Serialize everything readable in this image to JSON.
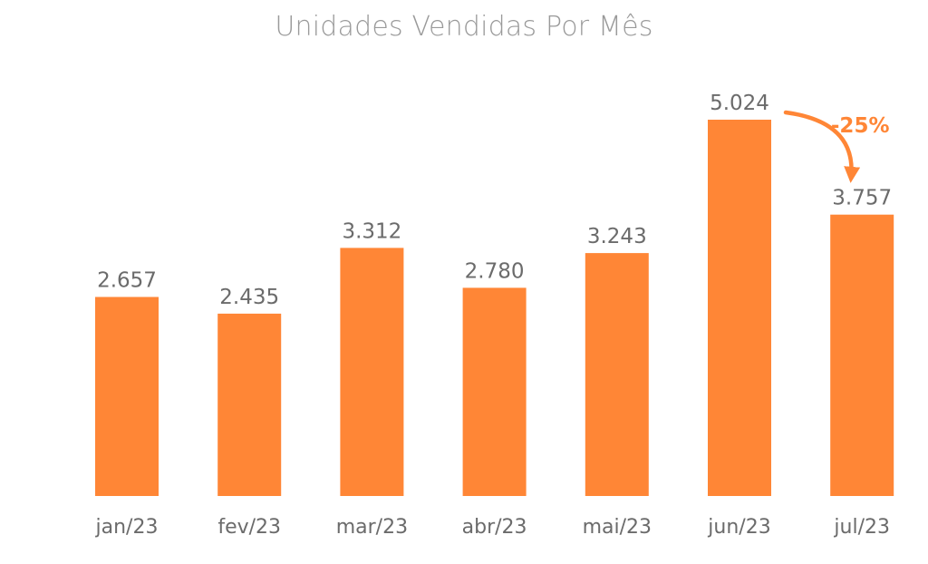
{
  "chart_data": {
    "type": "bar",
    "title": "Unidades Vendidas Por Mês",
    "xlabel": "",
    "ylabel": "",
    "categories": [
      "jan/23",
      "fev/23",
      "mar/23",
      "abr/23",
      "mai/23",
      "jun/23",
      "jul/23"
    ],
    "values": [
      2657,
      2435,
      3312,
      2780,
      3243,
      5024,
      3757
    ],
    "value_labels": [
      "2.657",
      "2.435",
      "3.312",
      "2.780",
      "3.243",
      "5.024",
      "3.757"
    ],
    "ylim": [
      0,
      5024
    ],
    "grid": false,
    "legend": "none",
    "bar_color": "#FF8636",
    "annotation": {
      "text": "-25%",
      "from_category": "jun/23",
      "to_category": "jul/23",
      "color": "#FF8636"
    }
  }
}
